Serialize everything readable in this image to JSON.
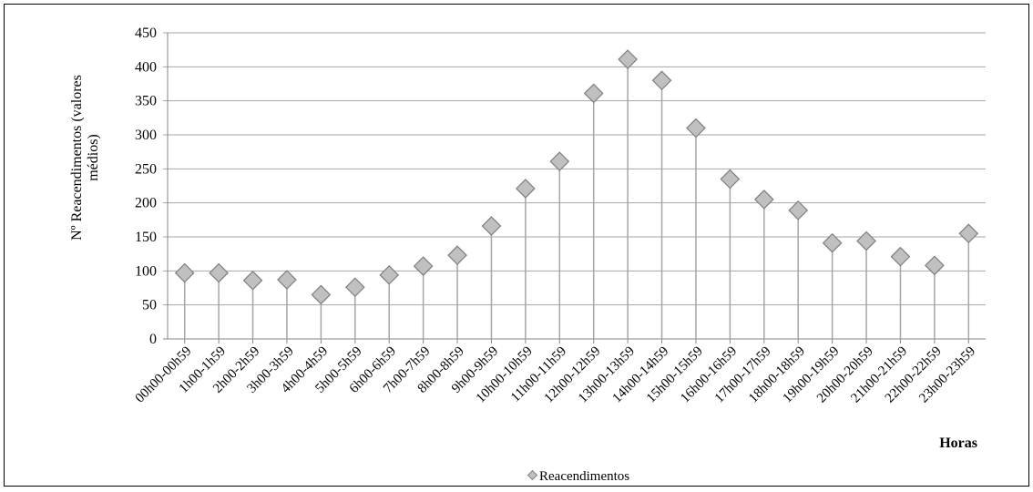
{
  "chart_data": {
    "type": "scatter",
    "subtype": "drop-line",
    "xlabel": "Horas",
    "ylabel": "Nº Reacendimentos (valores médios)",
    "ylim": [
      0,
      450
    ],
    "yticks": [
      0,
      50,
      100,
      150,
      200,
      250,
      300,
      350,
      400,
      450
    ],
    "grid": true,
    "legend": "bottom",
    "categories": [
      "00h00-00h59",
      "1h00-1h59",
      "2h00-2h59",
      "3h00-3h59",
      "4h00-4h59",
      "5h00-5h59",
      "6h00-6h59",
      "7h00-7h59",
      "8h00-8h59",
      "9h00-9h59",
      "10h00-10h59",
      "11h00-11h59",
      "12h00-12h59",
      "13h00-13h59",
      "14h00-14h59",
      "15h00-15h59",
      "16h00-16h59",
      "17h00-17h59",
      "18h00-18h59",
      "19h00-19h59",
      "20h00-20h59",
      "21h00-21h59",
      "22h00-22h59",
      "23h00-23h59"
    ],
    "series": [
      {
        "name": "Reacendimentos",
        "values": [
          97,
          97,
          86,
          87,
          65,
          76,
          94,
          107,
          123,
          166,
          221,
          261,
          361,
          411,
          380,
          310,
          235,
          205,
          189,
          141,
          144,
          121,
          108,
          155
        ],
        "marker_color": "#c0c0c0",
        "marker_stroke": "#7f7f7f",
        "line_color": "#a6a6a6"
      }
    ]
  }
}
